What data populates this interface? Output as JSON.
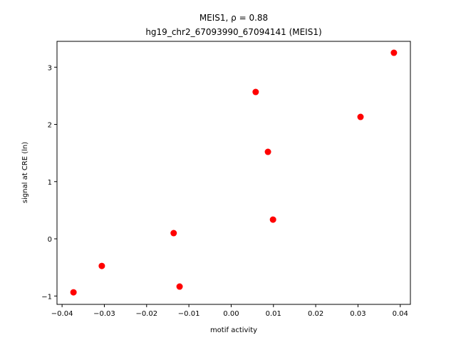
{
  "chart_data": {
    "type": "scatter",
    "title": "MEIS1, ρ = 0.88",
    "subtitle": "hg19_chr2_67093990_67094141 (MEIS1)",
    "x_label": "motif activity",
    "y_label": "signal at CRE (ln)",
    "color": "#ff0000",
    "series": [
      {
        "x": [
          -0.0373,
          -0.0306,
          -0.0136,
          -0.0122,
          0.0058,
          0.0087,
          0.0099,
          0.0306,
          0.0385
        ],
        "values": [
          -0.935,
          -0.474,
          0.1,
          -0.835,
          2.567,
          1.52,
          0.336,
          2.131,
          3.252
        ]
      }
    ],
    "xlim": [
      -0.0412,
      0.0424
    ],
    "ylim": [
      -1.146,
      3.452
    ],
    "xticks": [
      {
        "value": -0.04,
        "label": "−0.04"
      },
      {
        "value": -0.03,
        "label": "−0.03"
      },
      {
        "value": -0.02,
        "label": "−0.02"
      },
      {
        "value": -0.01,
        "label": "−0.01"
      },
      {
        "value": 0,
        "label": "0.00"
      },
      0.01,
      0.02,
      0.03,
      0.04
    ],
    "yticks": [
      {
        "value": -1,
        "label": "−1"
      },
      0,
      1,
      2,
      3
    ]
  }
}
